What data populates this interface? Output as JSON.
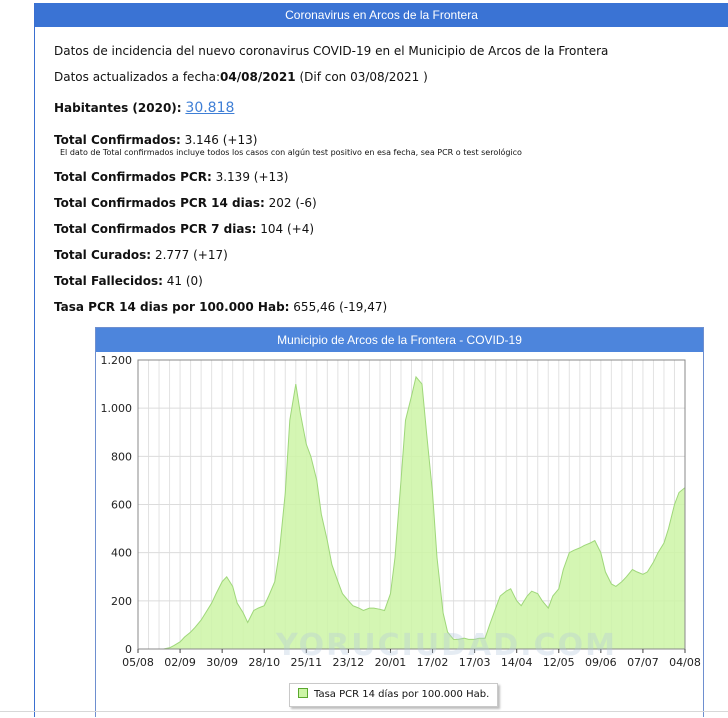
{
  "panel": {
    "title": "Coronavirus en Arcos de la Frontera",
    "intro": "Datos de incidencia del nuevo coronavirus COVID-19 en el Municipio de Arcos de la Frontera",
    "update_label": "Datos actualizados a fecha:",
    "update_date": "04/08/2021",
    "update_diff": "(Dif con 03/08/2021 )",
    "habitantes_label": "Habitantes (2020):",
    "habitantes_value": "30.818",
    "stats": [
      {
        "label": "Total Confirmados:",
        "value": "3.146 (+13)"
      },
      {
        "label": "Total Confirmados PCR:",
        "value": "3.139 (+13)"
      },
      {
        "label": "Total Confirmados PCR 14 dias:",
        "value": "202 (-6)"
      },
      {
        "label": "Total Confirmados PCR 7 dias:",
        "value": "104 (+4)"
      },
      {
        "label": "Total Curados:",
        "value": "2.777 (+17)"
      },
      {
        "label": "Total Fallecidos:",
        "value": "41 (0)"
      },
      {
        "label": "Tasa PCR 14 dias por 100.000 Hab:",
        "value": "655,46 (-19,47)"
      }
    ],
    "confirmados_note": "El dato de Total confirmados incluye todos los casos con algún test positivo en esa fecha, sea PCR o test serológico"
  },
  "watermark": "YORUCIUDAD.COM",
  "chart_data": {
    "type": "area",
    "title": "Municipio de Arcos de la Frontera - COVID-19",
    "xlabel": "",
    "ylabel": "",
    "ylim": [
      0,
      1200
    ],
    "grid": true,
    "legend_position": "bottom",
    "x_tick_labels": [
      "05/08",
      "02/09",
      "30/09",
      "28/10",
      "25/11",
      "23/12",
      "20/01",
      "17/02",
      "17/03",
      "14/04",
      "12/05",
      "09/06",
      "07/07",
      "04/08"
    ],
    "y_tick_labels": [
      "0",
      "200",
      "400",
      "600",
      "800",
      "1.000",
      "1.200"
    ],
    "y_ticks": [
      0,
      200,
      400,
      600,
      800,
      1000,
      1200
    ],
    "series": [
      {
        "name": "Tasa PCR 14 días por 100.000 Hab.",
        "color": "#ccf5a6",
        "line_color": "#9fd77a",
        "x": [
          0,
          3,
          7,
          10,
          14,
          17,
          21,
          24,
          28,
          31,
          35,
          38,
          42,
          45,
          49,
          52,
          56,
          59,
          63,
          66,
          70,
          73,
          77,
          80,
          84,
          87,
          91,
          94,
          98,
          101,
          105,
          108,
          112,
          115,
          119,
          122,
          126,
          129,
          133,
          136,
          140,
          143,
          147,
          150,
          154,
          157,
          161,
          164,
          168,
          171,
          175,
          178,
          182,
          185,
          189,
          192,
          196,
          199,
          203,
          206,
          210,
          213,
          217,
          220,
          224,
          227,
          231,
          234,
          238,
          241,
          245,
          248,
          252,
          255,
          259,
          262,
          266,
          269,
          273,
          276,
          280,
          283,
          287,
          290,
          294,
          297,
          301,
          304,
          308,
          311,
          315,
          318,
          322,
          325,
          329,
          332,
          336,
          339,
          343,
          346,
          350,
          353,
          357,
          360,
          364
        ],
        "values": [
          0,
          0,
          0,
          0,
          0,
          0,
          5,
          15,
          30,
          50,
          70,
          90,
          120,
          150,
          190,
          230,
          280,
          300,
          260,
          190,
          150,
          110,
          160,
          170,
          180,
          220,
          280,
          400,
          650,
          950,
          1100,
          980,
          850,
          800,
          700,
          560,
          450,
          350,
          280,
          230,
          200,
          180,
          170,
          160,
          170,
          170,
          165,
          160,
          230,
          380,
          700,
          950,
          1050,
          1130,
          1100,
          900,
          650,
          380,
          150,
          70,
          40,
          40,
          45,
          40,
          40,
          45,
          45,
          100,
          170,
          220,
          240,
          250,
          200,
          180,
          220,
          240,
          230,
          200,
          170,
          220,
          250,
          330,
          400,
          410,
          420,
          430,
          440,
          450,
          400,
          320,
          270,
          260,
          280,
          300,
          330,
          320,
          310,
          320,
          360,
          400,
          440,
          500,
          600,
          650,
          670
        ]
      }
    ]
  }
}
